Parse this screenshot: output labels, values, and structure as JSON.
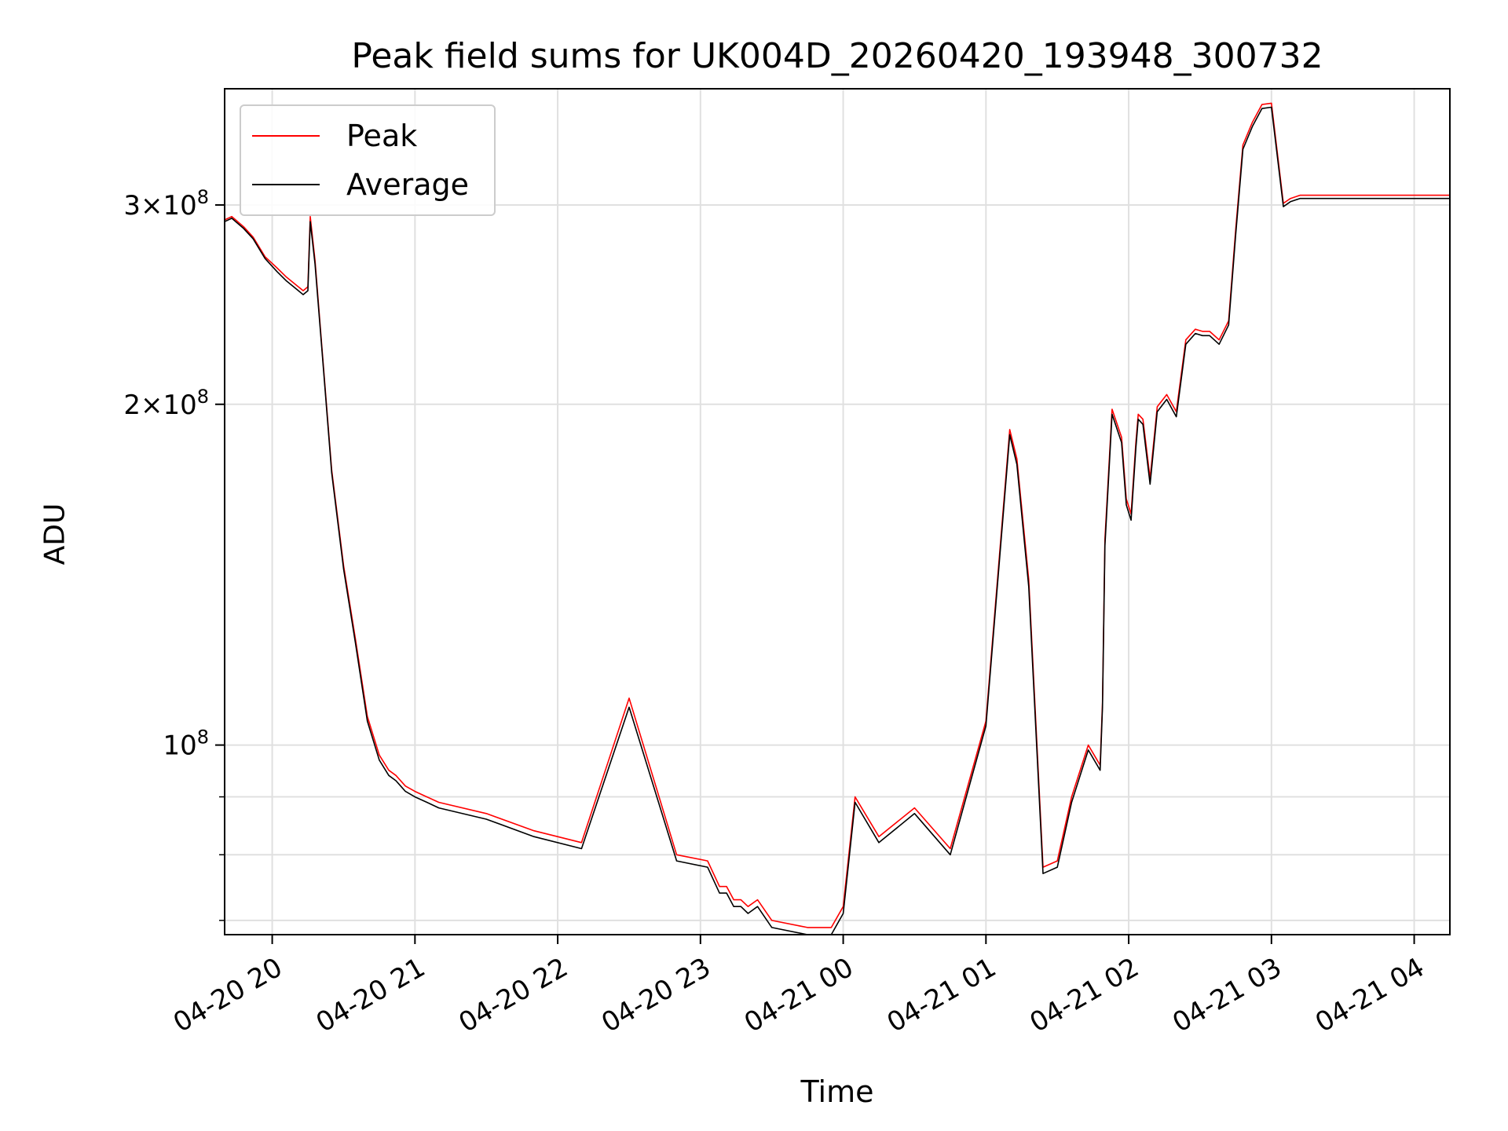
{
  "chart_data": {
    "type": "line",
    "title": "Peak field sums for UK004D_20260420_193948_300732",
    "xlabel": "Time",
    "ylabel": "ADU",
    "yscale": "log",
    "grid": true,
    "legend_position": "top-left",
    "x_ticks": [
      "04-20 20",
      "04-20 21",
      "04-20 22",
      "04-20 23",
      "04-21 00",
      "04-21 01",
      "04-21 02",
      "04-21 03",
      "04-21 04"
    ],
    "y_ticks": [
      {
        "value": 300000000,
        "mantissa": "3",
        "exponent": "8"
      },
      {
        "value": 200000000,
        "mantissa": "2",
        "exponent": "8"
      },
      {
        "value": 100000000,
        "mantissa": "",
        "exponent": "8"
      }
    ],
    "xlim": [
      "2026-04-20 19:40",
      "2026-04-21 04:15"
    ],
    "ylim": [
      68000000,
      380000000
    ],
    "series": [
      {
        "name": "Peak",
        "color": "#ff0000",
        "x": [
          "2026-04-20 19:40",
          "2026-04-20 19:43",
          "2026-04-20 19:48",
          "2026-04-20 19:52",
          "2026-04-20 19:57",
          "2026-04-20 20:02",
          "2026-04-20 20:06",
          "2026-04-20 20:10",
          "2026-04-20 20:13",
          "2026-04-20 20:15",
          "2026-04-20 20:16",
          "2026-04-20 20:18",
          "2026-04-20 20:21",
          "2026-04-20 20:25",
          "2026-04-20 20:30",
          "2026-04-20 20:35",
          "2026-04-20 20:40",
          "2026-04-20 20:45",
          "2026-04-20 20:49",
          "2026-04-20 20:52",
          "2026-04-20 20:56",
          "2026-04-20 21:00",
          "2026-04-20 21:05",
          "2026-04-20 21:10",
          "2026-04-20 21:30",
          "2026-04-20 21:50",
          "2026-04-20 22:10",
          "2026-04-20 22:30",
          "2026-04-20 22:50",
          "2026-04-20 23:03",
          "2026-04-20 23:08",
          "2026-04-20 23:11",
          "2026-04-20 23:14",
          "2026-04-20 23:17",
          "2026-04-20 23:20",
          "2026-04-20 23:24",
          "2026-04-20 23:30",
          "2026-04-20 23:45",
          "2026-04-20 23:55",
          "2026-04-21 00:00",
          "2026-04-21 00:05",
          "2026-04-21 00:15",
          "2026-04-21 00:30",
          "2026-04-21 00:45",
          "2026-04-21 01:00",
          "2026-04-21 01:10",
          "2026-04-21 01:13",
          "2026-04-21 01:18",
          "2026-04-21 01:24",
          "2026-04-21 01:30",
          "2026-04-21 01:36",
          "2026-04-21 01:43",
          "2026-04-21 01:48",
          "2026-04-21 01:49",
          "2026-04-21 01:50",
          "2026-04-21 01:53",
          "2026-04-21 01:57",
          "2026-04-21 01:59",
          "2026-04-21 02:01",
          "2026-04-21 02:03",
          "2026-04-21 02:04",
          "2026-04-21 02:06",
          "2026-04-21 02:09",
          "2026-04-21 02:12",
          "2026-04-21 02:16",
          "2026-04-21 02:20",
          "2026-04-21 02:24",
          "2026-04-21 02:28",
          "2026-04-21 02:31",
          "2026-04-21 02:34",
          "2026-04-21 02:38",
          "2026-04-21 02:42",
          "2026-04-21 02:45",
          "2026-04-21 02:48",
          "2026-04-21 02:52",
          "2026-04-21 02:56",
          "2026-04-21 03:00",
          "2026-04-21 03:05",
          "2026-04-21 03:08",
          "2026-04-21 03:12",
          "2026-04-21 03:16",
          "2026-04-21 03:20",
          "2026-04-21 03:25",
          "2026-04-21 03:30",
          "2026-04-21 03:36",
          "2026-04-21 03:40",
          "2026-04-21 03:45",
          "2026-04-21 03:50",
          "2026-04-21 03:55",
          "2026-04-21 04:00",
          "2026-04-21 04:04",
          "2026-04-21 04:07",
          "2026-04-21 04:08",
          "2026-04-21 04:10",
          "2026-04-21 04:15"
        ],
        "values": [
          291,
          293,
          287,
          281,
          270,
          264,
          259,
          255,
          252,
          254,
          293,
          268,
          223,
          175,
          144,
          124,
          106,
          98,
          95,
          94,
          92,
          91,
          90,
          89,
          87,
          84,
          82,
          110,
          80,
          79,
          75,
          75,
          73,
          73,
          72,
          73,
          70,
          69,
          69,
          72,
          90,
          83,
          88,
          81,
          105,
          190,
          179,
          140,
          78,
          79,
          90,
          100,
          96,
          109,
          152,
          198,
          187,
          165,
          160,
          185,
          196,
          194,
          172,
          199,
          204,
          197,
          228,
          233,
          232,
          232,
          228,
          237,
          286,
          339,
          355,
          368,
          369,
          301,
          304,
          306,
          306,
          306,
          306,
          306,
          306,
          306,
          306,
          306,
          306,
          306,
          306,
          306,
          306,
          306,
          306
        ]
      },
      {
        "name": "Average",
        "color": "#000000",
        "x": [
          "2026-04-20 19:40",
          "2026-04-20 19:43",
          "2026-04-20 19:48",
          "2026-04-20 19:52",
          "2026-04-20 19:57",
          "2026-04-20 20:02",
          "2026-04-20 20:06",
          "2026-04-20 20:10",
          "2026-04-20 20:13",
          "2026-04-20 20:15",
          "2026-04-20 20:16",
          "2026-04-20 20:18",
          "2026-04-20 20:21",
          "2026-04-20 20:25",
          "2026-04-20 20:30",
          "2026-04-20 20:35",
          "2026-04-20 20:40",
          "2026-04-20 20:45",
          "2026-04-20 20:49",
          "2026-04-20 20:52",
          "2026-04-20 20:56",
          "2026-04-20 21:00",
          "2026-04-20 21:05",
          "2026-04-20 21:10",
          "2026-04-20 21:30",
          "2026-04-20 21:50",
          "2026-04-20 22:10",
          "2026-04-20 22:30",
          "2026-04-20 22:50",
          "2026-04-20 23:03",
          "2026-04-20 23:08",
          "2026-04-20 23:11",
          "2026-04-20 23:14",
          "2026-04-20 23:17",
          "2026-04-20 23:20",
          "2026-04-20 23:24",
          "2026-04-20 23:30",
          "2026-04-20 23:45",
          "2026-04-20 23:55",
          "2026-04-21 00:00",
          "2026-04-21 00:05",
          "2026-04-21 00:15",
          "2026-04-21 00:30",
          "2026-04-21 00:45",
          "2026-04-21 01:00",
          "2026-04-21 01:10",
          "2026-04-21 01:13",
          "2026-04-21 01:18",
          "2026-04-21 01:24",
          "2026-04-21 01:30",
          "2026-04-21 01:36",
          "2026-04-21 01:43",
          "2026-04-21 01:48",
          "2026-04-21 01:49",
          "2026-04-21 01:50",
          "2026-04-21 01:53",
          "2026-04-21 01:57",
          "2026-04-21 01:59",
          "2026-04-21 02:01",
          "2026-04-21 02:03",
          "2026-04-21 02:04",
          "2026-04-21 02:06",
          "2026-04-21 02:09",
          "2026-04-21 02:12",
          "2026-04-21 02:16",
          "2026-04-21 02:20",
          "2026-04-21 02:24",
          "2026-04-21 02:28",
          "2026-04-21 02:31",
          "2026-04-21 02:34",
          "2026-04-21 02:38",
          "2026-04-21 02:42",
          "2026-04-21 02:45",
          "2026-04-21 02:48",
          "2026-04-21 02:52",
          "2026-04-21 02:56",
          "2026-04-21 03:00",
          "2026-04-21 03:05",
          "2026-04-21 03:08",
          "2026-04-21 03:12",
          "2026-04-21 03:16",
          "2026-04-21 03:20",
          "2026-04-21 03:25",
          "2026-04-21 03:30",
          "2026-04-21 03:36",
          "2026-04-21 03:40",
          "2026-04-21 03:45",
          "2026-04-21 03:50",
          "2026-04-21 03:55",
          "2026-04-21 04:00",
          "2026-04-21 04:04",
          "2026-04-21 04:07",
          "2026-04-21 04:08",
          "2026-04-21 04:10",
          "2026-04-21 04:15"
        ],
        "values": [
          290,
          292,
          286,
          280,
          269,
          262,
          257,
          253,
          250,
          252,
          290,
          266,
          222,
          174,
          143,
          123,
          105,
          97,
          94,
          93,
          91,
          90,
          89,
          88,
          86,
          83,
          81,
          108,
          79,
          78,
          74,
          74,
          72,
          72,
          71,
          72,
          69,
          68,
          68,
          71,
          89,
          82,
          87,
          80,
          104,
          188,
          177,
          138,
          77,
          78,
          89,
          99,
          95,
          108,
          150,
          196,
          185,
          163,
          158,
          183,
          194,
          192,
          170,
          197,
          202,
          195,
          226,
          231,
          230,
          230,
          226,
          235,
          283,
          336,
          352,
          365,
          366,
          299,
          302,
          304,
          304,
          304,
          304,
          304,
          304,
          304,
          304,
          304,
          304,
          304,
          304,
          304,
          304,
          304,
          304
        ]
      }
    ]
  }
}
